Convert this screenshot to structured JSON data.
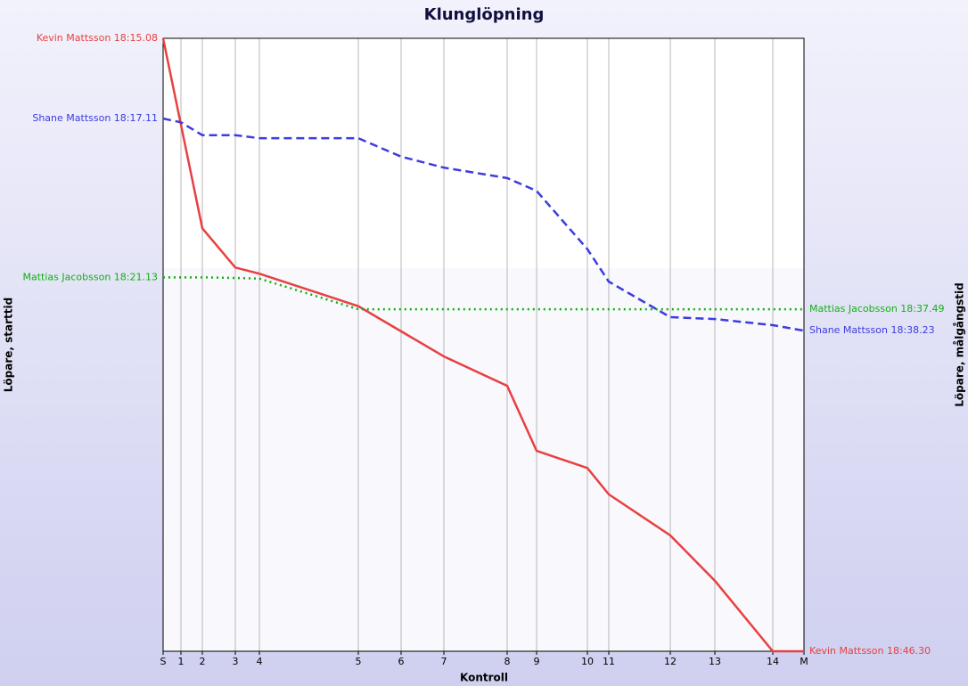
{
  "chart_data": {
    "type": "line",
    "title": "Klunglöpning",
    "x_label": "Kontroll",
    "y_label": "Löpare, starttid",
    "y2_label": "Löpare, målgångstid",
    "x": [
      0,
      20,
      44,
      81,
      108,
      219,
      267,
      315,
      386,
      419,
      476,
      500,
      569,
      619,
      684,
      719
    ],
    "xlim": [
      0,
      719
    ],
    "xticks": [
      {
        "value": 0,
        "label": "S"
      },
      {
        "value": 20,
        "label": "1"
      },
      {
        "value": 44,
        "label": "2"
      },
      {
        "value": 81,
        "label": "3"
      },
      {
        "value": 108,
        "label": "4"
      },
      {
        "value": 219,
        "label": "5"
      },
      {
        "value": 267,
        "label": "6"
      },
      {
        "value": 315,
        "label": "7"
      },
      {
        "value": 386,
        "label": "8"
      },
      {
        "value": 419,
        "label": "9"
      },
      {
        "value": 476,
        "label": "10"
      },
      {
        "value": 500,
        "label": "11"
      },
      {
        "value": 569,
        "label": "12"
      },
      {
        "value": 619,
        "label": "13"
      },
      {
        "value": 684,
        "label": "14"
      },
      {
        "value": 719,
        "label": "M"
      }
    ],
    "ylim": [
      0,
      100
    ],
    "grid": true,
    "series": [
      {
        "name": "Kevin Mattsson",
        "start_label": "Kevin Mattsson 18:15.08",
        "end_label": "Kevin Mattsson 18:46.30",
        "color": "#e84040",
        "dash": "solid",
        "values": [
          100,
          85.9,
          69.0,
          62.6,
          61.6,
          56.3,
          52.2,
          48.1,
          43.3,
          32.7,
          29.9,
          25.6,
          18.9,
          11.5,
          0,
          0
        ]
      },
      {
        "name": "Shane Mattsson",
        "start_label": "Shane Mattsson 18:17.11",
        "end_label": "Shane Mattsson 18:38.23",
        "color": "#3c3ce0",
        "dash": "dashed",
        "values": [
          86.9,
          86.3,
          84.2,
          84.2,
          83.7,
          83.7,
          80.7,
          78.9,
          77.2,
          75.1,
          65.6,
          60.3,
          54.5,
          54.2,
          53.2,
          52.3
        ]
      },
      {
        "name": "Mattias Jacobsson",
        "start_label": "Mattias Jacobsson 18:21.13",
        "end_label": "Mattias Jacobsson 18:37.49",
        "color": "#10b010",
        "dash": "dotted",
        "values": [
          61.0,
          61.0,
          61.0,
          60.9,
          60.8,
          55.8,
          55.8,
          55.8,
          55.8,
          55.8,
          55.8,
          55.8,
          55.8,
          55.8,
          55.8,
          55.8
        ]
      }
    ]
  }
}
